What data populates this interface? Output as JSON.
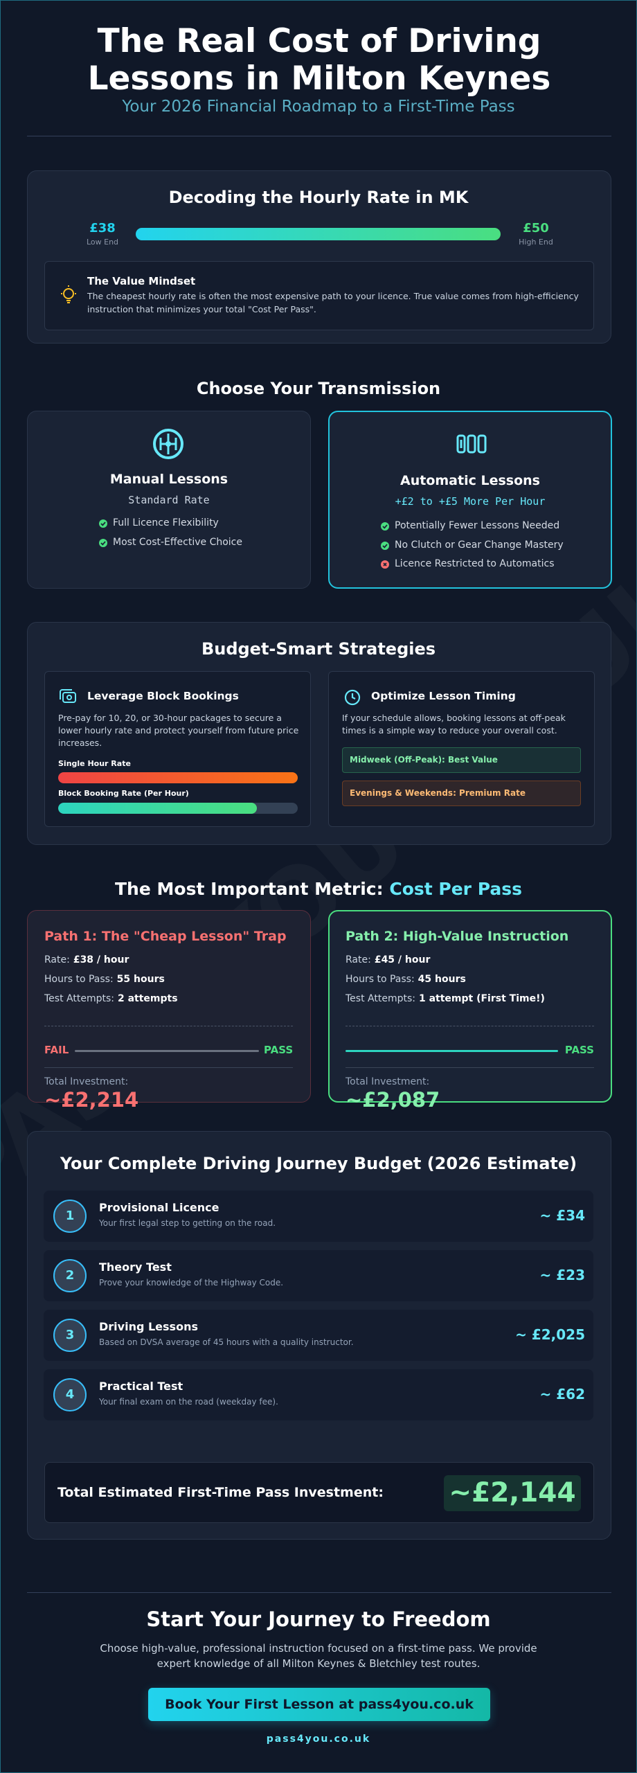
{
  "header": {
    "title": "The Real Cost of Driving Lessons in Milton Keynes",
    "subtitle": "Your 2026 Financial Roadmap to a First-Time Pass"
  },
  "watermark": "PASS4YOU.CO.UK",
  "hourly_rate": {
    "title": "Decoding the Hourly Rate in MK",
    "low": {
      "value": "£38",
      "label": "Low End"
    },
    "high": {
      "value": "£50",
      "label": "High End"
    },
    "mindset": {
      "title": "The Value Mindset",
      "text": "The cheapest hourly rate is often the most expensive path to your licence. True value comes from high-efficiency instruction that minimizes your total \"Cost Per Pass\"."
    }
  },
  "transmission": {
    "title": "Choose Your Transmission",
    "cards": [
      {
        "title": "Manual Lessons",
        "subtitle": "Standard Rate",
        "features": [
          "Full Licence Flexibility",
          "Most Cost-Effective Choice"
        ]
      },
      {
        "title": "Automatic Lessons",
        "subtitle": "+£2 to +£5 More Per Hour",
        "features": [
          "Potentially Fewer Lessons Needed",
          "No Clutch or Gear Change Mastery",
          "Licence Restricted to Automatics"
        ]
      }
    ]
  },
  "strategies": {
    "title": "Budget-Smart Strategies",
    "block": {
      "title": "Leverage Block Bookings",
      "text": "Pre-pay for 10, 20, or 30-hour packages to secure a lower hourly rate and protect yourself from future price increases.",
      "bars": [
        "Single Hour Rate",
        "Block Booking Rate (Per Hour)"
      ]
    },
    "timing": {
      "title": "Optimize Lesson Timing",
      "text": "If your schedule allows, booking lessons at off-peak times is a simple way to reduce your overall cost.",
      "options": [
        "Midweek (Off-Peak): Best Value",
        "Evenings & Weekends: Premium Rate"
      ]
    }
  },
  "metric": {
    "title": "The Most Important Metric:",
    "highlight": "Cost Per Pass"
  },
  "paths": [
    {
      "title": "Path 1: The \"Cheap Lesson\" Trap",
      "rows": [
        {
          "label": "Rate:",
          "value": "£38 / hour"
        },
        {
          "label": "Hours to Pass:",
          "value": "55 hours"
        },
        {
          "label": "Test Attempts:",
          "value": "2 attempts"
        }
      ],
      "fail": "FAIL",
      "pass": "PASS",
      "total_label": "Total Investment:",
      "total": "~£2,214"
    },
    {
      "title": "Path 2: High-Value Instruction",
      "rows": [
        {
          "label": "Rate:",
          "value": "£45 / hour"
        },
        {
          "label": "Hours to Pass:",
          "value": "45 hours"
        },
        {
          "label": "Test Attempts:",
          "value": "1 attempt (First Time!)"
        }
      ],
      "pass": "PASS",
      "total_label": "Total Investment:",
      "total": "~£2,087"
    }
  ],
  "budget": {
    "title": "Your Complete Driving Journey Budget (2026 Estimate)",
    "items": [
      {
        "number": "1",
        "title": "Provisional Licence",
        "description": "Your first legal step to getting on the road.",
        "cost": "~ £34"
      },
      {
        "number": "2",
        "title": "Theory Test",
        "description": "Prove your knowledge of the Highway Code.",
        "cost": "~ £23"
      },
      {
        "number": "3",
        "title": "Driving Lessons",
        "description": "Based on DVSA average of 45 hours with a quality instructor.",
        "cost": "~ £2,025"
      },
      {
        "number": "4",
        "title": "Practical Test",
        "description": "Your final exam on the road (weekday fee).",
        "cost": "~ £62"
      }
    ],
    "total_label": "Total Estimated First-Time Pass Investment:",
    "total": "~£2,144"
  },
  "footer": {
    "title": "Start Your Journey to Freedom",
    "text": "Choose high-value, professional instruction focused on a first-time pass. We provide expert knowledge of all Milton Keynes & Bletchley test routes.",
    "button": "Book Your First Lesson at pass4you.co.uk",
    "url": "pass4you.co.uk"
  }
}
